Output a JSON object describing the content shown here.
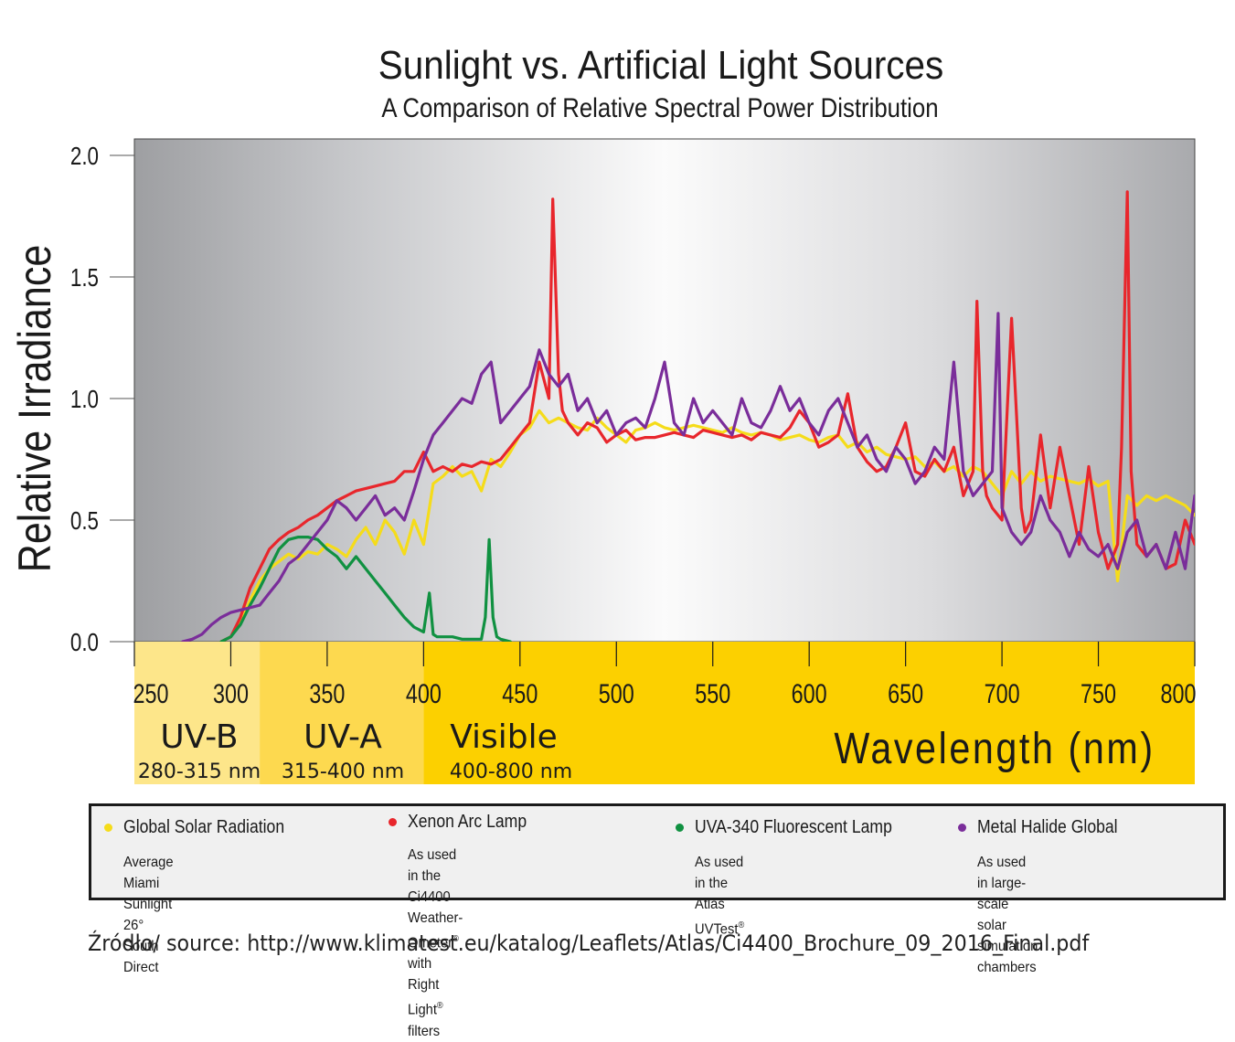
{
  "chart_data": {
    "type": "line",
    "title": "Sunlight vs. Artificial  Light Sources",
    "subtitle": "A Comparison of Relative Spectral Power Distribution",
    "ylabel": "Relative Irradiance",
    "xlabel": "Wavelength (nm)",
    "xlim": [
      250,
      800
    ],
    "ylim": [
      0,
      2.0
    ],
    "x_ticks": [
      "250",
      "300",
      "350",
      "400",
      "450",
      "500",
      "550",
      "600",
      "650",
      "700",
      "750",
      "800"
    ],
    "y_ticks": [
      "0.0",
      "0.5",
      "1.0",
      "1.5",
      "2.0"
    ],
    "grid": false,
    "legend_position": "bottom",
    "regions": [
      {
        "name": "UV-B",
        "range_label": "280-315 nm",
        "from": 250,
        "to": 315,
        "color": "#fde68a"
      },
      {
        "name": "UV-A",
        "range_label": "315-400 nm",
        "from": 315,
        "to": 400,
        "color": "#fdd94f"
      },
      {
        "name": "Visible",
        "range_label": "400-800 nm",
        "from": 400,
        "to": 800,
        "color": "#fcd000"
      }
    ],
    "series": [
      {
        "name": "Global Solar Radiation",
        "color": "#f5dc1a",
        "x": [
          295,
          300,
          305,
          310,
          315,
          320,
          325,
          330,
          335,
          340,
          345,
          350,
          355,
          360,
          365,
          370,
          375,
          380,
          385,
          390,
          395,
          400,
          405,
          410,
          415,
          420,
          425,
          430,
          435,
          440,
          445,
          450,
          455,
          460,
          465,
          470,
          475,
          480,
          485,
          490,
          495,
          500,
          505,
          510,
          515,
          520,
          525,
          530,
          535,
          540,
          545,
          550,
          555,
          560,
          565,
          570,
          575,
          580,
          585,
          590,
          595,
          600,
          605,
          610,
          615,
          620,
          625,
          630,
          635,
          640,
          645,
          650,
          655,
          660,
          665,
          670,
          675,
          680,
          685,
          690,
          695,
          700,
          705,
          710,
          715,
          720,
          725,
          730,
          735,
          740,
          745,
          750,
          755,
          760,
          765,
          770,
          775,
          780,
          785,
          790,
          795,
          800
        ],
        "y": [
          0.0,
          0.02,
          0.08,
          0.17,
          0.25,
          0.3,
          0.33,
          0.36,
          0.34,
          0.37,
          0.36,
          0.4,
          0.38,
          0.35,
          0.42,
          0.47,
          0.4,
          0.5,
          0.45,
          0.36,
          0.5,
          0.4,
          0.65,
          0.68,
          0.72,
          0.68,
          0.7,
          0.62,
          0.75,
          0.72,
          0.78,
          0.85,
          0.88,
          0.95,
          0.9,
          0.92,
          0.9,
          0.88,
          0.87,
          0.92,
          0.88,
          0.85,
          0.82,
          0.87,
          0.88,
          0.9,
          0.88,
          0.87,
          0.88,
          0.89,
          0.88,
          0.87,
          0.86,
          0.88,
          0.86,
          0.85,
          0.86,
          0.85,
          0.83,
          0.84,
          0.85,
          0.83,
          0.82,
          0.84,
          0.85,
          0.8,
          0.82,
          0.78,
          0.8,
          0.77,
          0.76,
          0.75,
          0.76,
          0.72,
          0.74,
          0.7,
          0.72,
          0.68,
          0.72,
          0.7,
          0.65,
          0.6,
          0.7,
          0.65,
          0.7,
          0.66,
          0.68,
          0.67,
          0.66,
          0.65,
          0.67,
          0.64,
          0.66,
          0.25,
          0.6,
          0.56,
          0.6,
          0.58,
          0.6,
          0.58,
          0.56,
          0.52
        ]
      },
      {
        "name": "Xenon Arc Lamp",
        "color": "#e8262c",
        "x": [
          295,
          300,
          305,
          310,
          315,
          320,
          325,
          330,
          335,
          340,
          345,
          350,
          355,
          360,
          365,
          370,
          375,
          380,
          385,
          390,
          395,
          400,
          405,
          410,
          415,
          420,
          425,
          430,
          435,
          440,
          445,
          450,
          455,
          460,
          465,
          467,
          470,
          472,
          475,
          480,
          485,
          490,
          495,
          500,
          505,
          510,
          515,
          520,
          525,
          530,
          535,
          540,
          545,
          550,
          555,
          560,
          565,
          570,
          575,
          580,
          585,
          590,
          595,
          600,
          605,
          610,
          615,
          620,
          625,
          630,
          635,
          640,
          645,
          650,
          655,
          660,
          665,
          670,
          675,
          680,
          685,
          687,
          690,
          692,
          695,
          700,
          705,
          710,
          712,
          715,
          720,
          725,
          730,
          735,
          740,
          745,
          750,
          755,
          760,
          762,
          765,
          767,
          770,
          775,
          780,
          785,
          790,
          795,
          800
        ],
        "y": [
          0.0,
          0.02,
          0.1,
          0.22,
          0.3,
          0.38,
          0.42,
          0.45,
          0.47,
          0.5,
          0.52,
          0.55,
          0.58,
          0.6,
          0.62,
          0.63,
          0.64,
          0.65,
          0.66,
          0.7,
          0.7,
          0.78,
          0.7,
          0.72,
          0.7,
          0.73,
          0.72,
          0.74,
          0.73,
          0.75,
          0.8,
          0.85,
          0.9,
          1.15,
          1.0,
          1.82,
          1.1,
          0.95,
          0.9,
          0.85,
          0.9,
          0.88,
          0.82,
          0.85,
          0.87,
          0.83,
          0.84,
          0.84,
          0.85,
          0.86,
          0.85,
          0.84,
          0.87,
          0.86,
          0.85,
          0.84,
          0.85,
          0.83,
          0.86,
          0.85,
          0.84,
          0.88,
          0.95,
          0.9,
          0.8,
          0.82,
          0.85,
          1.02,
          0.8,
          0.74,
          0.7,
          0.72,
          0.8,
          0.9,
          0.7,
          0.68,
          0.75,
          0.7,
          0.8,
          0.6,
          0.7,
          1.4,
          0.7,
          0.6,
          0.55,
          0.5,
          1.33,
          0.55,
          0.45,
          0.5,
          0.85,
          0.55,
          0.8,
          0.6,
          0.4,
          0.72,
          0.45,
          0.3,
          0.4,
          0.8,
          1.85,
          0.7,
          0.4,
          0.35,
          0.4,
          0.3,
          0.32,
          0.5,
          0.4
        ]
      },
      {
        "name": "UVA-340 Fluorescent Lamp",
        "color": "#109141",
        "x": [
          295,
          300,
          305,
          310,
          315,
          320,
          325,
          330,
          335,
          340,
          345,
          350,
          355,
          360,
          365,
          370,
          375,
          380,
          385,
          390,
          395,
          400,
          403,
          405,
          407,
          410,
          415,
          420,
          425,
          430,
          432,
          434,
          436,
          438,
          440,
          445
        ],
        "y": [
          0.0,
          0.02,
          0.07,
          0.15,
          0.22,
          0.3,
          0.38,
          0.42,
          0.43,
          0.43,
          0.42,
          0.38,
          0.35,
          0.3,
          0.35,
          0.3,
          0.25,
          0.2,
          0.15,
          0.1,
          0.06,
          0.04,
          0.2,
          0.03,
          0.02,
          0.02,
          0.02,
          0.01,
          0.01,
          0.01,
          0.1,
          0.42,
          0.1,
          0.02,
          0.01,
          0.0
        ]
      },
      {
        "name": "Metal  Halide Global",
        "color": "#7a2d9a",
        "x": [
          275,
          280,
          285,
          290,
          295,
          300,
          305,
          310,
          315,
          320,
          325,
          330,
          335,
          340,
          345,
          350,
          355,
          360,
          365,
          370,
          375,
          380,
          385,
          390,
          395,
          400,
          405,
          410,
          415,
          420,
          425,
          430,
          435,
          440,
          445,
          450,
          455,
          460,
          465,
          470,
          475,
          480,
          485,
          490,
          495,
          500,
          505,
          510,
          515,
          520,
          525,
          530,
          535,
          540,
          545,
          550,
          555,
          560,
          565,
          570,
          575,
          580,
          585,
          590,
          595,
          600,
          605,
          610,
          615,
          620,
          625,
          630,
          635,
          640,
          645,
          650,
          655,
          660,
          665,
          670,
          675,
          680,
          685,
          690,
          695,
          698,
          700,
          705,
          710,
          715,
          720,
          725,
          730,
          735,
          740,
          745,
          750,
          755,
          760,
          765,
          770,
          775,
          780,
          785,
          790,
          795,
          800
        ],
        "y": [
          0.0,
          0.01,
          0.03,
          0.07,
          0.1,
          0.12,
          0.13,
          0.14,
          0.15,
          0.2,
          0.25,
          0.32,
          0.35,
          0.4,
          0.45,
          0.5,
          0.58,
          0.55,
          0.5,
          0.55,
          0.6,
          0.52,
          0.55,
          0.5,
          0.62,
          0.75,
          0.85,
          0.9,
          0.95,
          1.0,
          0.98,
          1.1,
          1.15,
          0.9,
          0.95,
          1.0,
          1.05,
          1.2,
          1.1,
          1.05,
          1.1,
          0.95,
          1.0,
          0.9,
          0.95,
          0.85,
          0.9,
          0.92,
          0.88,
          1.0,
          1.15,
          0.9,
          0.85,
          1.0,
          0.9,
          0.95,
          0.9,
          0.85,
          1.0,
          0.9,
          0.88,
          0.95,
          1.05,
          0.95,
          1.0,
          0.9,
          0.85,
          0.95,
          1.0,
          0.9,
          0.8,
          0.85,
          0.75,
          0.7,
          0.8,
          0.75,
          0.65,
          0.7,
          0.8,
          0.75,
          1.15,
          0.7,
          0.6,
          0.65,
          0.7,
          1.35,
          0.55,
          0.45,
          0.4,
          0.45,
          0.6,
          0.5,
          0.45,
          0.35,
          0.45,
          0.38,
          0.35,
          0.4,
          0.3,
          0.45,
          0.5,
          0.35,
          0.4,
          0.3,
          0.45,
          0.3,
          0.6
        ]
      }
    ]
  },
  "legend": [
    {
      "name": "Global Solar Radiation",
      "color": "#f5dc1a",
      "desc": [
        "Average Miami  Sunlight 26° South",
        "Direct"
      ]
    },
    {
      "name": "Xenon Arc Lamp",
      "color": "#e8262c",
      "desc": [
        "As used in the Ci4400 Weather-",
        "Ometer® with  Right Light® filters"
      ]
    },
    {
      "name": "UVA-340 Fluorescent  Lamp",
      "color": "#109141",
      "desc": [
        "As used in the Atlas UVTest®"
      ]
    },
    {
      "name": "Metal  Halide Global",
      "color": "#7a2d9a",
      "desc": [
        "As used in large-scale solar",
        "simulation chambers"
      ]
    }
  ],
  "source": "Źródło/ source: http://www.klimatest.eu/katalog/Leaflets/Atlas/Ci4400_Brochure_09_2016_Final.pdf"
}
